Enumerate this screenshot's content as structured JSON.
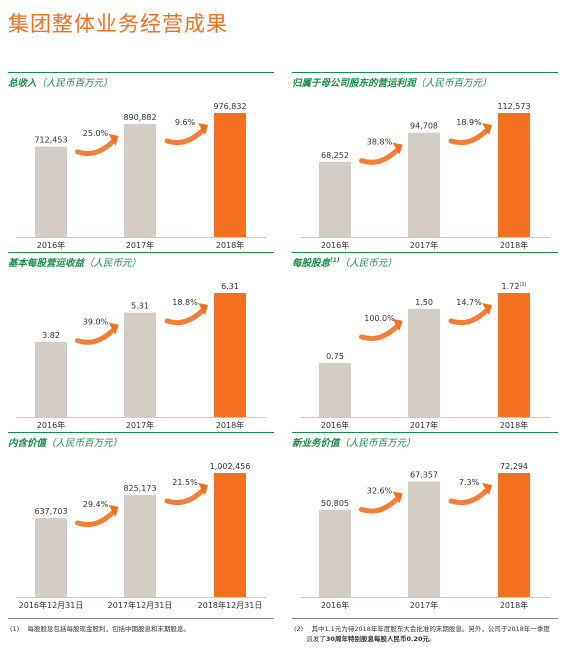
{
  "page_title": "集团整体业务经营成果",
  "colors": {
    "grey_bar": "#d4cdc6",
    "orange_bar": "#f37021",
    "green": "#1a8a4a",
    "arrow": "#f37021"
  },
  "chart_data": [
    {
      "type": "bar",
      "title": "总收入",
      "unit": "（人民币百万元）",
      "sup": "",
      "categories": [
        "2016年",
        "2017年",
        "2018年"
      ],
      "values": [
        712453,
        890882,
        976832
      ],
      "value_labels": [
        "712,453",
        "890,882",
        "976,832"
      ],
      "growth": [
        "25.0%",
        "9.6%"
      ],
      "highlight_index": 2,
      "value_label_sup": ""
    },
    {
      "type": "bar",
      "title": "归属于母公司股东的营运利润",
      "unit": "（人民币百万元）",
      "sup": "",
      "categories": [
        "2016年",
        "2017年",
        "2018年"
      ],
      "values": [
        68252,
        94708,
        112573
      ],
      "value_labels": [
        "68,252",
        "94,708",
        "112,573"
      ],
      "growth": [
        "38.8%",
        "18.9%"
      ],
      "highlight_index": 2,
      "value_label_sup": ""
    },
    {
      "type": "bar",
      "title": "基本每股营运收益",
      "unit": "（人民币元）",
      "sup": "",
      "categories": [
        "2016年",
        "2017年",
        "2018年"
      ],
      "values": [
        3.82,
        5.31,
        6.31
      ],
      "value_labels": [
        "3.82",
        "5.31",
        "6.31"
      ],
      "growth": [
        "39.0%",
        "18.8%"
      ],
      "highlight_index": 2,
      "value_label_sup": ""
    },
    {
      "type": "bar",
      "title": "每股股息",
      "unit": "（人民币元）",
      "sup": "(1)",
      "categories": [
        "2016年",
        "2017年",
        "2018年"
      ],
      "values": [
        0.75,
        1.5,
        1.72
      ],
      "value_labels": [
        "0.75",
        "1.50",
        "1.72"
      ],
      "growth": [
        "100.0%",
        "14.7%"
      ],
      "highlight_index": 2,
      "value_label_sup": "(2)"
    },
    {
      "type": "bar",
      "title": "内含价值",
      "unit": "（人民币百万元）",
      "sup": "",
      "categories": [
        "2016年12月31日",
        "2017年12月31日",
        "2018年12月31日"
      ],
      "values": [
        637703,
        825173,
        1002456
      ],
      "value_labels": [
        "637,703",
        "825,173",
        "1,002,456"
      ],
      "growth": [
        "29.4%",
        "21.5%"
      ],
      "highlight_index": 2,
      "value_label_sup": ""
    },
    {
      "type": "bar",
      "title": "新业务价值",
      "unit": "（人民币百万元）",
      "sup": "",
      "categories": [
        "2016年",
        "2017年",
        "2018年"
      ],
      "values": [
        50805,
        67357,
        72294
      ],
      "value_labels": [
        "50,805",
        "67,357",
        "72,294"
      ],
      "growth": [
        "32.6%",
        "7.3%"
      ],
      "highlight_index": 2,
      "value_label_sup": ""
    }
  ],
  "footnotes": {
    "left_num": "(1)",
    "left_text": "每股股息包括每股现金股利，包括中期股息和末期股息。",
    "right_num": "(2)",
    "right_text_1": "其中1.1元为待2018年年度股东大会批准的末期股息。另外，公司于2018年一季度",
    "right_text_2a": "派发了",
    "right_text_2b": "30周年特别股息每股人民币0.20元",
    "right_text_2c": "。"
  }
}
